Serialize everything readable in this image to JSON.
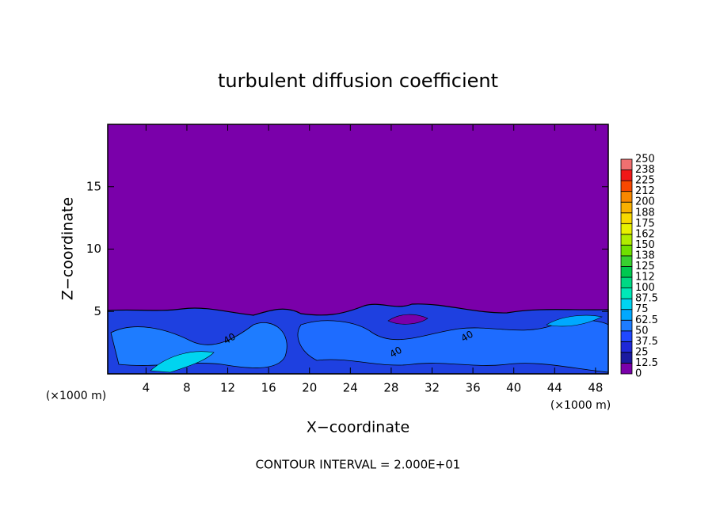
{
  "chart_data": {
    "type": "contour",
    "title": "turbulent diffusion coefficient",
    "xlabel": "X−coordinate",
    "ylabel": "Z−coordinate",
    "x_unit_left": "(×1000 m)",
    "x_unit_right": "(×1000 m)",
    "footnote": "CONTOUR INTERVAL = 2.000E+01",
    "xlim": [
      0.25,
      49.25
    ],
    "xticks": [
      4,
      8,
      12,
      16,
      20,
      24,
      28,
      32,
      36,
      40,
      44,
      48
    ],
    "ylim": [
      0,
      20
    ],
    "yticks": [
      5,
      10,
      15
    ],
    "contour_labels": [
      "40",
      "40",
      "40"
    ],
    "colorbar": {
      "levels": [
        0,
        12.5,
        25,
        37.5,
        50,
        62.5,
        75,
        87.5,
        100,
        112,
        125,
        138,
        150,
        162,
        175,
        188,
        200,
        212,
        225,
        238,
        250
      ],
      "colors": [
        "#7a00aa",
        "#1a1aa0",
        "#1e28d8",
        "#2048ff",
        "#1e7cff",
        "#00a8ff",
        "#00d4f0",
        "#00e8b8",
        "#00d884",
        "#00c850",
        "#38d030",
        "#70e000",
        "#b0ec00",
        "#e8f000",
        "#f8d800",
        "#f8b000",
        "#f88800",
        "#f84800",
        "#f01818",
        "#f07070"
      ]
    }
  }
}
